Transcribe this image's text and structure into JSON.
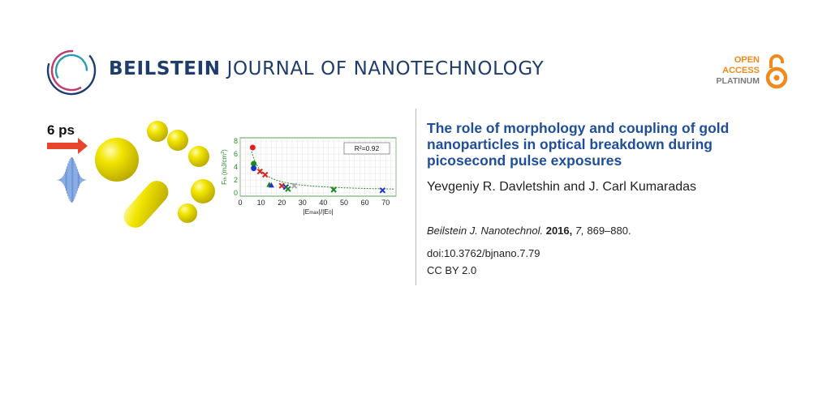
{
  "header": {
    "journal_bold": "BEILSTEIN",
    "journal_rest": "JOURNAL OF NANOTECHNOLOGY",
    "open_access": [
      "OPEN",
      "ACCESS",
      "PLATINUM"
    ],
    "logo_icon": "beilstein-ring-icon",
    "lock_icon": "open-lock-icon",
    "brand_color": "#1f3d6b",
    "oa_color": "#f08a1c"
  },
  "article": {
    "title": "The role of morphology and coupling of gold nanoparticles in optical breakdown during picosecond pulse exposures",
    "authors": "Yevgeniy R. Davletshin and J. Carl Kumaradas",
    "journal_abbrev": "Beilstein J. Nanotechnol.",
    "year": "2016,",
    "volume": "7,",
    "pages": "869–880.",
    "doi": "doi:10.3762/bjnano.7.79",
    "license": "CC BY 2.0",
    "title_color": "#1f4e9a"
  },
  "graphic": {
    "pulse_label": "6 ps",
    "arrow_color": "#e8452c",
    "pulse_color": "#4a7fd1",
    "particle_color": "#f2e600"
  },
  "chart_data": {
    "type": "scatter",
    "annotation": "R²=0.92",
    "xlabel_parts": [
      "|E",
      "max",
      "|/|E",
      "0",
      "|"
    ],
    "ylabel_parts": [
      "F",
      "th",
      " (mJ/cm",
      "2",
      ")"
    ],
    "xlim": [
      0,
      75
    ],
    "ylim": [
      -0.5,
      8.5
    ],
    "xticks": [
      0,
      10,
      20,
      30,
      40,
      50,
      60,
      70
    ],
    "yticks": [
      0,
      2,
      4,
      6,
      8
    ],
    "grid": true,
    "fit_curve": {
      "style": "dashed",
      "color": "#2a8a2a"
    },
    "points": [
      {
        "x": 6,
        "y": 7.0,
        "marker": "circle",
        "color": "#e02020"
      },
      {
        "x": 6.5,
        "y": 4.5,
        "marker": "circle",
        "color": "#1a8a1a"
      },
      {
        "x": 6.5,
        "y": 3.8,
        "marker": "circle",
        "color": "#2233cc"
      },
      {
        "x": 9.5,
        "y": 3.3,
        "marker": "x",
        "color": "#e02020"
      },
      {
        "x": 12,
        "y": 2.8,
        "marker": "x",
        "color": "#e02020"
      },
      {
        "x": 14,
        "y": 1.3,
        "marker": "triangle",
        "color": "#1a8a1a"
      },
      {
        "x": 15,
        "y": 1.2,
        "marker": "triangle",
        "color": "#2233cc"
      },
      {
        "x": 20,
        "y": 1.1,
        "marker": "x",
        "color": "#e02020"
      },
      {
        "x": 22,
        "y": 0.9,
        "marker": "x",
        "color": "#2233cc"
      },
      {
        "x": 23,
        "y": 0.6,
        "marker": "x",
        "color": "#1a8a1a"
      },
      {
        "x": 26,
        "y": 1.1,
        "marker": "x",
        "color": "#aaaaaa"
      },
      {
        "x": 45,
        "y": 0.5,
        "marker": "x",
        "color": "#1a8a1a"
      },
      {
        "x": 68.5,
        "y": 0.4,
        "marker": "x",
        "color": "#2233cc"
      }
    ]
  }
}
